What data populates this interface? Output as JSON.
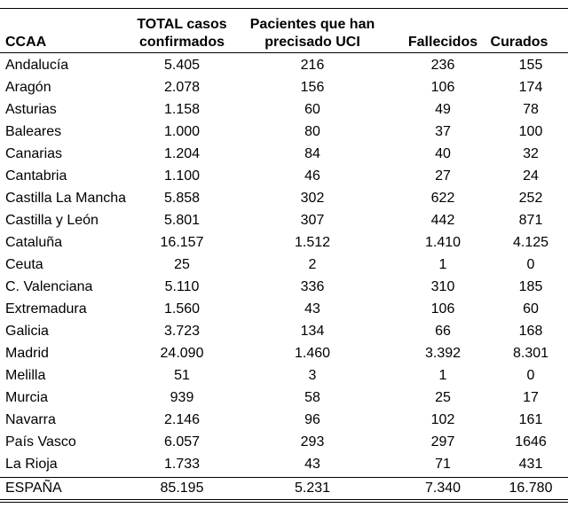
{
  "table": {
    "headers": {
      "ccaa": "CCAA",
      "total": [
        "TOTAL casos",
        "confirmados"
      ],
      "uci": [
        "Pacientes que han",
        "precisado UCI"
      ],
      "fallecidos": "Fallecidos",
      "curados": "Curados"
    },
    "rows": [
      {
        "ccaa": "Andalucía",
        "total": "5.405",
        "uci": "216",
        "fallecidos": "236",
        "curados": "155"
      },
      {
        "ccaa": "Aragón",
        "total": "2.078",
        "uci": "156",
        "fallecidos": "106",
        "curados": "174"
      },
      {
        "ccaa": "Asturias",
        "total": "1.158",
        "uci": "60",
        "fallecidos": "49",
        "curados": "78"
      },
      {
        "ccaa": "Baleares",
        "total": "1.000",
        "uci": "80",
        "fallecidos": "37",
        "curados": "100"
      },
      {
        "ccaa": "Canarias",
        "total": "1.204",
        "uci": "84",
        "fallecidos": "40",
        "curados": "32"
      },
      {
        "ccaa": "Cantabria",
        "total": "1.100",
        "uci": "46",
        "fallecidos": "27",
        "curados": "24"
      },
      {
        "ccaa": "Castilla La Mancha",
        "total": "5.858",
        "uci": "302",
        "fallecidos": "622",
        "curados": "252"
      },
      {
        "ccaa": "Castilla y León",
        "total": "5.801",
        "uci": "307",
        "fallecidos": "442",
        "curados": "871"
      },
      {
        "ccaa": "Cataluña",
        "total": "16.157",
        "uci": "1.512",
        "fallecidos": "1.410",
        "curados": "4.125"
      },
      {
        "ccaa": "Ceuta",
        "total": "25",
        "uci": "2",
        "fallecidos": "1",
        "curados": "0"
      },
      {
        "ccaa": "C. Valenciana",
        "total": "5.110",
        "uci": "336",
        "fallecidos": "310",
        "curados": "185"
      },
      {
        "ccaa": "Extremadura",
        "total": "1.560",
        "uci": "43",
        "fallecidos": "106",
        "curados": "60"
      },
      {
        "ccaa": "Galicia",
        "total": "3.723",
        "uci": "134",
        "fallecidos": "66",
        "curados": "168"
      },
      {
        "ccaa": "Madrid",
        "total": "24.090",
        "uci": "1.460",
        "fallecidos": "3.392",
        "curados": "8.301"
      },
      {
        "ccaa": "Melilla",
        "total": "51",
        "uci": "3",
        "fallecidos": "1",
        "curados": "0"
      },
      {
        "ccaa": "Murcia",
        "total": "939",
        "uci": "58",
        "fallecidos": "25",
        "curados": "17"
      },
      {
        "ccaa": "Navarra",
        "total": "2.146",
        "uci": "96",
        "fallecidos": "102",
        "curados": "161"
      },
      {
        "ccaa": "País Vasco",
        "total": "6.057",
        "uci": "293",
        "fallecidos": "297",
        "curados": "1646"
      },
      {
        "ccaa": "La Rioja",
        "total": "1.733",
        "uci": "43",
        "fallecidos": "71",
        "curados": "431"
      }
    ],
    "total_row": {
      "ccaa": "ESPAÑA",
      "total": "85.195",
      "uci": "5.231",
      "fallecidos": "7.340",
      "curados": "16.780"
    }
  }
}
